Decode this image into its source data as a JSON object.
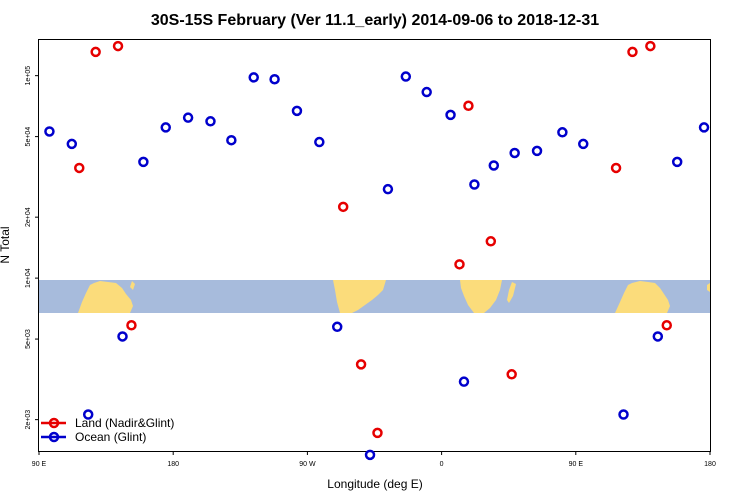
{
  "chart_data": {
    "type": "scatter",
    "title": "30S-15S February (Ver 11.1_early)   2014-09-06 to 2018-12-31",
    "xlabel": "Longitude (deg E)",
    "ylabel": "N Total",
    "x_axis": {
      "min": 90,
      "max": 540,
      "ticks": [
        {
          "value": 90,
          "label": "90 E"
        },
        {
          "value": 180,
          "label": "180"
        },
        {
          "value": 270,
          "label": "90 W"
        },
        {
          "value": 360,
          "label": "0"
        },
        {
          "value": 450,
          "label": "90 E"
        },
        {
          "value": 540,
          "label": "180"
        }
      ]
    },
    "y_axis": {
      "scale": "log",
      "min": 1400,
      "max": 150000,
      "ticks": [
        {
          "value": 2000,
          "label": "2e+03"
        },
        {
          "value": 5000,
          "label": "5e+03"
        },
        {
          "value": 10000,
          "label": "1e+04"
        },
        {
          "value": 20000,
          "label": "2e+04"
        },
        {
          "value": 50000,
          "label": "5e+04"
        },
        {
          "value": 100000,
          "label": "1e+05"
        }
      ]
    },
    "colors": {
      "land": "#e60000",
      "ocean": "#0000cc",
      "map_ocean": "#a7bbdc",
      "map_land": "#fbdc7b"
    },
    "legend_position": "bottom-left",
    "series": [
      {
        "name": "Land (Nadir&Glint)",
        "color": "#e60000",
        "points": [
          {
            "x": 117,
            "y": 35000
          },
          {
            "x": 128,
            "y": 131000
          },
          {
            "x": 143,
            "y": 140000
          },
          {
            "x": 152,
            "y": 5850
          },
          {
            "x": 294,
            "y": 22500
          },
          {
            "x": 306,
            "y": 3750
          },
          {
            "x": 317,
            "y": 1720
          },
          {
            "x": 372,
            "y": 11700
          },
          {
            "x": 378,
            "y": 71000
          },
          {
            "x": 393,
            "y": 15200
          },
          {
            "x": 407,
            "y": 3350
          },
          {
            "x": 477,
            "y": 35000
          },
          {
            "x": 488,
            "y": 131000
          },
          {
            "x": 500,
            "y": 140000
          },
          {
            "x": 511,
            "y": 5850
          }
        ]
      },
      {
        "name": "Ocean (Glint)",
        "color": "#0000cc",
        "points": [
          {
            "x": 97,
            "y": 53000
          },
          {
            "x": 112,
            "y": 46000
          },
          {
            "x": 123,
            "y": 2120
          },
          {
            "x": 146,
            "y": 5150
          },
          {
            "x": 160,
            "y": 37500
          },
          {
            "x": 175,
            "y": 55500
          },
          {
            "x": 190,
            "y": 62000
          },
          {
            "x": 205,
            "y": 59500
          },
          {
            "x": 219,
            "y": 48000
          },
          {
            "x": 234,
            "y": 98000
          },
          {
            "x": 248,
            "y": 96000
          },
          {
            "x": 263,
            "y": 67000
          },
          {
            "x": 278,
            "y": 47000
          },
          {
            "x": 290,
            "y": 5750
          },
          {
            "x": 312,
            "y": 1340
          },
          {
            "x": 324,
            "y": 27500
          },
          {
            "x": 336,
            "y": 99000
          },
          {
            "x": 350,
            "y": 83000
          },
          {
            "x": 366,
            "y": 64000
          },
          {
            "x": 375,
            "y": 3080
          },
          {
            "x": 382,
            "y": 29000
          },
          {
            "x": 395,
            "y": 36000
          },
          {
            "x": 409,
            "y": 41500
          },
          {
            "x": 424,
            "y": 42500
          },
          {
            "x": 441,
            "y": 52500
          },
          {
            "x": 455,
            "y": 46000
          },
          {
            "x": 482,
            "y": 2120
          },
          {
            "x": 505,
            "y": 5150
          },
          {
            "x": 518,
            "y": 37500
          },
          {
            "x": 536,
            "y": 55500
          }
        ]
      }
    ]
  }
}
